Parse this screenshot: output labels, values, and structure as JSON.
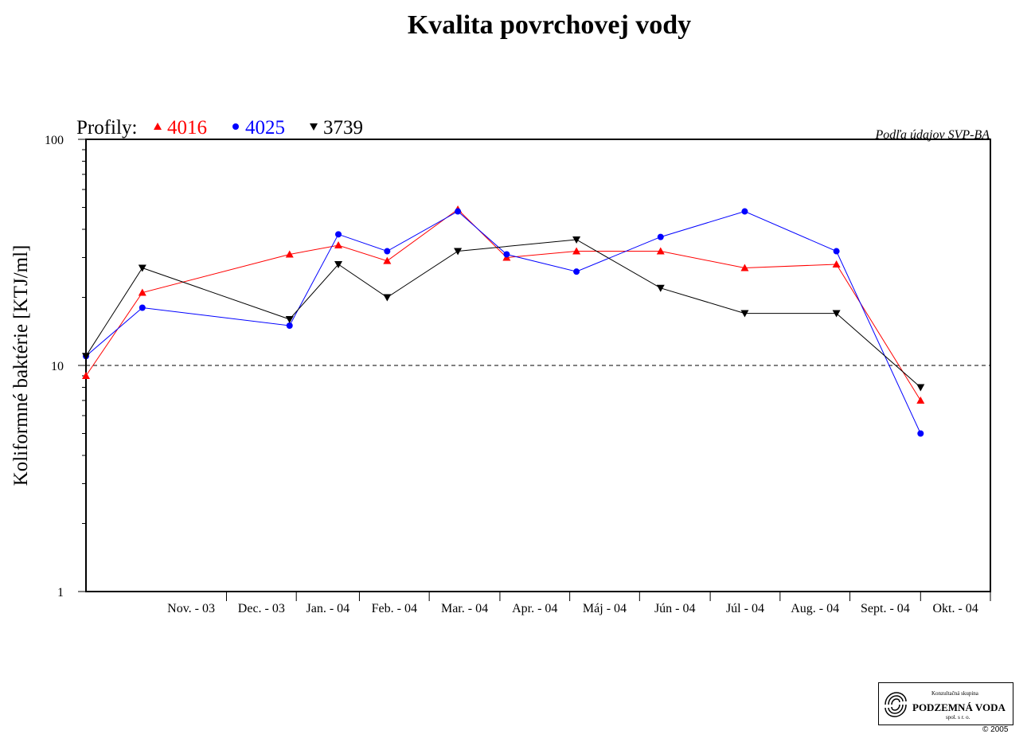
{
  "chart_data": {
    "type": "line",
    "title": "Kvalita povrchovej vody",
    "ylabel": "Koliformné  baktérie [KTJ/ml]",
    "xlabel": "",
    "yscale": "log",
    "ylim": [
      1,
      100
    ],
    "yticks": [
      "1",
      "10",
      "100"
    ],
    "reference_line": 10,
    "legend_prefix": "Profily:",
    "source_note": "Podľa údajov SVP-BA",
    "categories": [
      "Nov.  - 03",
      "Dec.  - 03",
      "Jan.  - 04",
      "Feb.  - 04",
      "Mar.  - 04",
      "Apr.  - 04",
      "Máj  - 04",
      "Jún  - 04",
      "Júl  - 04",
      "Aug.  - 04",
      "Sept.  - 04",
      "Okt.  - 04"
    ],
    "x": [
      2003.875,
      2003.958,
      2004.042,
      2004.125,
      2004.2,
      2004.283,
      2004.367,
      2004.45,
      2004.533,
      2004.617,
      2004.7,
      2004.783,
      2004.867,
      2004.95
    ],
    "series": [
      {
        "name": "4016",
        "color": "#ff0000",
        "marker": "triangle-up",
        "x": [
          2003.875,
          2003.942,
          2004.117,
          2004.175,
          2004.233,
          2004.317,
          2004.375,
          2004.458,
          2004.558,
          2004.658,
          2004.767,
          2004.867
        ],
        "values": [
          9,
          21,
          31,
          34,
          29,
          49,
          30,
          32,
          32,
          27,
          28,
          7
        ]
      },
      {
        "name": "4025",
        "color": "#0000ff",
        "marker": "circle",
        "x": [
          2003.875,
          2003.942,
          2004.117,
          2004.175,
          2004.233,
          2004.317,
          2004.375,
          2004.458,
          2004.558,
          2004.658,
          2004.767,
          2004.867
        ],
        "values": [
          11,
          18,
          15,
          38,
          32,
          48,
          31,
          26,
          37,
          48,
          32,
          5
        ]
      },
      {
        "name": "3739",
        "color": "#000000",
        "marker": "triangle-down",
        "x": [
          2003.875,
          2003.942,
          2004.117,
          2004.175,
          2004.233,
          2004.317,
          2004.458,
          2004.558,
          2004.658,
          2004.767,
          2004.867
        ],
        "values": [
          11,
          27,
          16,
          28,
          20,
          32,
          36,
          22,
          17,
          17,
          8
        ]
      }
    ]
  },
  "logo": {
    "line1": "Konzultačná  skupina",
    "line2": "PODZEMNÁ VODA",
    "line3": "spol.  s  r. o.",
    "copyright": "© 2005"
  }
}
